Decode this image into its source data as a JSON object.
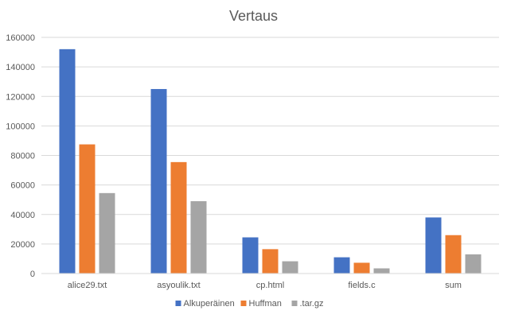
{
  "chart_data": {
    "type": "bar",
    "title": "Vertaus",
    "categories": [
      "alice29.txt",
      "asyoulik.txt",
      "cp.html",
      "fields.c",
      "sum"
    ],
    "series": [
      {
        "name": "Alkuperäinen",
        "color": "#4472C4",
        "values": [
          152000,
          125000,
          24500,
          11000,
          38000
        ]
      },
      {
        "name": "Huffman",
        "color": "#ED7D31",
        "values": [
          87500,
          75500,
          16500,
          7300,
          26000
        ]
      },
      {
        "name": ".tar.gz",
        "color": "#A5A5A5",
        "values": [
          54500,
          49000,
          8300,
          3500,
          13000
        ]
      }
    ],
    "xlabel": "",
    "ylabel": "",
    "ylim": [
      0,
      160000
    ],
    "yticks": [
      0,
      20000,
      40000,
      60000,
      80000,
      100000,
      120000,
      140000,
      160000
    ],
    "grid": true,
    "legend_position": "bottom"
  }
}
